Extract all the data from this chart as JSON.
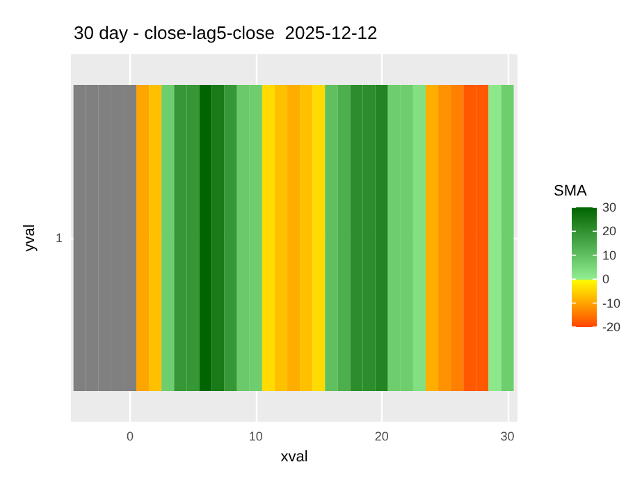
{
  "chart_data": {
    "type": "heatmap",
    "title": "30 day - close-lag5-close  2025-12-12",
    "xlabel": "xval",
    "ylabel": "yval",
    "clabel": "SMA",
    "x": [
      -4,
      -3,
      -2,
      -1,
      0,
      1,
      2,
      3,
      4,
      5,
      6,
      7,
      8,
      9,
      10,
      11,
      12,
      13,
      14,
      15,
      16,
      17,
      18,
      19,
      20,
      21,
      22,
      23,
      24,
      25,
      26,
      27,
      28,
      29,
      30
    ],
    "y_categories": [
      "1"
    ],
    "cells": [
      [
        null,
        null,
        null,
        null,
        null,
        -10,
        -7,
        7,
        19,
        19,
        30,
        25,
        19,
        8,
        7,
        -4,
        -7,
        -9,
        -7,
        -4,
        10,
        14,
        21,
        21,
        23,
        7,
        7,
        3,
        -9,
        -12,
        -14,
        -18,
        -18,
        1,
        7
      ]
    ],
    "xlim": [
      -4.7,
      30.8
    ],
    "xticks": [
      0,
      10,
      20,
      30
    ],
    "clim": [
      -20,
      30
    ],
    "cticks": [
      -20,
      -10,
      0,
      10,
      20,
      30
    ],
    "grid": true
  }
}
